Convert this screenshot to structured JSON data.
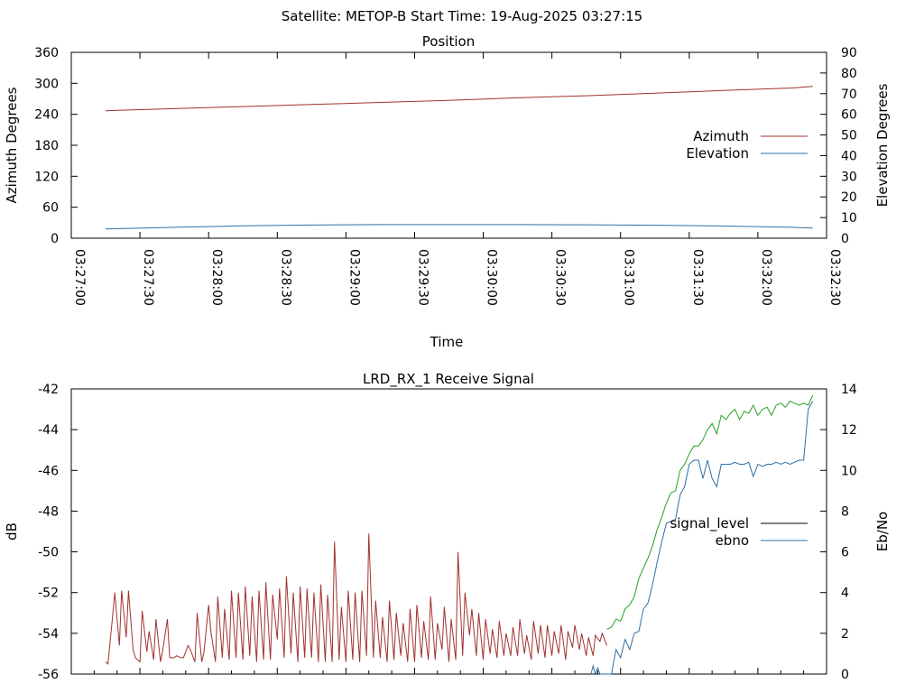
{
  "window_title": "Satellite: METOP-B    Start Time: 19-Aug-2025 03:27:15",
  "chart_data": [
    {
      "type": "line",
      "title": "Position",
      "xlabel": "Time",
      "ylabel": "Azimuth Degrees",
      "y2label": "Elevation Degrees",
      "x_ticks": [
        "03:27:00",
        "03:27:30",
        "03:28:00",
        "03:28:30",
        "03:29:00",
        "03:29:30",
        "03:30:00",
        "03:30:30",
        "03:31:00",
        "03:31:30",
        "03:32:00",
        "03:32:30"
      ],
      "y_ticks": [
        "360",
        "300",
        "240",
        "180",
        "120",
        "60",
        "0"
      ],
      "y2_ticks": [
        "90",
        "80",
        "70",
        "60",
        "50",
        "40",
        "30",
        "20",
        "10",
        "0"
      ],
      "ylim": [
        0,
        360
      ],
      "y2lim": [
        0,
        90
      ],
      "grid": false,
      "legend_position": "right",
      "series": [
        {
          "name": "Azimuth",
          "axis": "left",
          "color": "#a0322e",
          "x": [
            "03:27:15",
            "03:27:45",
            "03:28:15",
            "03:28:45",
            "03:29:15",
            "03:29:45",
            "03:30:15",
            "03:30:45",
            "03:31:15",
            "03:31:45",
            "03:32:15",
            "03:32:24"
          ],
          "values": [
            247,
            251,
            255,
            259,
            263,
            267,
            272,
            276,
            281,
            286,
            291,
            294
          ]
        },
        {
          "name": "Elevation",
          "axis": "right",
          "color": "#2d6fa5",
          "x": [
            "03:27:15",
            "03:27:45",
            "03:28:15",
            "03:28:45",
            "03:29:15",
            "03:29:45",
            "03:30:15",
            "03:30:45",
            "03:31:15",
            "03:31:45",
            "03:32:15",
            "03:32:24"
          ],
          "values": [
            4.5,
            5.3,
            6.0,
            6.4,
            6.6,
            6.6,
            6.6,
            6.5,
            6.3,
            5.9,
            5.3,
            4.9
          ]
        }
      ]
    },
    {
      "type": "line",
      "title": "LRD_RX_1 Receive Signal",
      "xlabel": "",
      "ylabel": "dB",
      "y2label": "Eb/No",
      "y_ticks": [
        "-42",
        "-44",
        "-46",
        "-48",
        "-50",
        "-52",
        "-54",
        "-56"
      ],
      "y2_ticks": [
        "14",
        "12",
        "10",
        "8",
        "6",
        "4",
        "2",
        "0"
      ],
      "ylim": [
        -56,
        -42
      ],
      "y2lim": [
        0,
        14
      ],
      "xlim": [
        "03:27:00",
        "03:32:30"
      ],
      "grid": false,
      "legend_position": "right",
      "series": [
        {
          "name": "signal_level",
          "axis": "left",
          "color": "#000000",
          "segments": [
            {
              "color": "#a0322e",
              "x_seconds": [
                15,
                16,
                18,
                19,
                21,
                22,
                24,
                25,
                27,
                28,
                30,
                31,
                33,
                34,
                36,
                37,
                39,
                40,
                42,
                43,
                45,
                46,
                48,
                49,
                51,
                52,
                54,
                55,
                57,
                58,
                60,
                61,
                63,
                64,
                66,
                67,
                69,
                70,
                72,
                73,
                75,
                76,
                78,
                79,
                81,
                82,
                84,
                85,
                87,
                88,
                90,
                91,
                93,
                94,
                96,
                97,
                99,
                100,
                102,
                103,
                105,
                106,
                108,
                109,
                111,
                112,
                114,
                115,
                117,
                118,
                120,
                121,
                123,
                124,
                126,
                127,
                129,
                130,
                132,
                133,
                135,
                136,
                138,
                139,
                141,
                142,
                144,
                145,
                147,
                148,
                150,
                151,
                153,
                154,
                156,
                157,
                159,
                160,
                162,
                163,
                165,
                166,
                168,
                169,
                171,
                172,
                174,
                175,
                177,
                178,
                180,
                181,
                183,
                184,
                186,
                187,
                189,
                190,
                192,
                193,
                195,
                196,
                198,
                199,
                201,
                202,
                204,
                205,
                207,
                208,
                210,
                211,
                213,
                214,
                216,
                217,
                219,
                220,
                222,
                223,
                225,
                226,
                228,
                229,
                231,
                232,
                234
              ],
              "values": [
                -55.4,
                -55.5,
                -53.2,
                -52.0,
                -54.6,
                -51.9,
                -54.2,
                -51.9,
                -54.8,
                -55.2,
                -55.4,
                -52.9,
                -54.9,
                -53.9,
                -55.3,
                -53.3,
                -55.4,
                -54.8,
                -53.3,
                -55.2,
                -55.2,
                -55.1,
                -55.2,
                -55.2,
                -54.6,
                -54.8,
                -55.4,
                -53.0,
                -55.4,
                -54.9,
                -52.6,
                -53.9,
                -55.4,
                -52.2,
                -55.2,
                -52.8,
                -55.3,
                -51.9,
                -55.2,
                -52.0,
                -55.3,
                -51.7,
                -55.1,
                -52.2,
                -55.4,
                -51.9,
                -55.3,
                -51.5,
                -55.3,
                -52.1,
                -54.3,
                -51.8,
                -55.2,
                -51.2,
                -55.0,
                -52.0,
                -55.4,
                -51.7,
                -55.2,
                -51.8,
                -55.2,
                -52.0,
                -55.4,
                -51.6,
                -55.4,
                -52.1,
                -55.4,
                -49.5,
                -55.3,
                -52.7,
                -55.4,
                -51.9,
                -55.3,
                -52.0,
                -55.4,
                -51.9,
                -55.1,
                -49.1,
                -55.2,
                -52.4,
                -55.2,
                -53.2,
                -55.4,
                -52.4,
                -55.3,
                -53.0,
                -55.1,
                -53.5,
                -55.4,
                -52.8,
                -55.4,
                -52.6,
                -55.2,
                -53.4,
                -55.3,
                -52.2,
                -55.3,
                -53.5,
                -54.8,
                -52.7,
                -55.4,
                -53.3,
                -55.3,
                -50.0,
                -55.1,
                -52.0,
                -54.1,
                -52.8,
                -55.1,
                -53.0,
                -55.3,
                -53.3,
                -55.0,
                -53.8,
                -55.2,
                -53.4,
                -55.1,
                -54.0,
                -55.1,
                -53.7,
                -55.1,
                -53.3,
                -55.0,
                -54.1,
                -55.3,
                -53.4,
                -55.0,
                -53.6,
                -55.2,
                -53.6,
                -55.1,
                -53.9,
                -55.0,
                -53.6,
                -55.3,
                -53.9,
                -54.7,
                -53.6,
                -54.8,
                -54.0,
                -55.1,
                -54.2,
                -55.1,
                -54.1,
                -54.4,
                -54.0,
                -54.6
              ]
            },
            {
              "color": "#22a022",
              "x_seconds": [
                234,
                236,
                238,
                240,
                242,
                244,
                246,
                248,
                250,
                252,
                254,
                256,
                258,
                260,
                262,
                264,
                266,
                268,
                270,
                272,
                274,
                276,
                278,
                280,
                282,
                284,
                286,
                288,
                290,
                292,
                294,
                296,
                298,
                300,
                302,
                304,
                306,
                308,
                310,
                312,
                314,
                316,
                318,
                320,
                322,
                324
              ],
              "values": [
                -53.8,
                -53.7,
                -53.3,
                -53.4,
                -52.8,
                -52.6,
                -52.2,
                -51.3,
                -50.8,
                -50.3,
                -49.7,
                -48.9,
                -48.3,
                -47.6,
                -47.1,
                -47.0,
                -46.0,
                -45.7,
                -45.2,
                -44.8,
                -44.8,
                -44.5,
                -44.0,
                -43.7,
                -44.2,
                -43.3,
                -43.5,
                -43.2,
                -43.0,
                -43.5,
                -43.1,
                -43.2,
                -42.8,
                -43.3,
                -43.0,
                -42.9,
                -43.3,
                -42.8,
                -42.7,
                -42.9,
                -42.6,
                -42.7,
                -42.8,
                -42.7,
                -42.8,
                -42.3
              ]
            }
          ]
        },
        {
          "name": "ebno",
          "axis": "right",
          "color": "#2d6fa5",
          "x_seconds": [
            227,
            228,
            229,
            230,
            231,
            232,
            234,
            236,
            238,
            240,
            242,
            244,
            246,
            248,
            250,
            252,
            254,
            256,
            258,
            260,
            262,
            264,
            266,
            268,
            270,
            272,
            274,
            276,
            278,
            280,
            282,
            284,
            286,
            288,
            290,
            292,
            294,
            296,
            298,
            300,
            302,
            304,
            306,
            308,
            310,
            312,
            314,
            316,
            318,
            320,
            322,
            324
          ],
          "values": [
            0,
            0.4,
            0,
            0.3,
            0,
            0,
            0,
            0,
            1.2,
            0.8,
            1.7,
            1.2,
            2.0,
            2.1,
            3.2,
            3.5,
            4.4,
            5.5,
            6.5,
            7.4,
            7.5,
            7.6,
            8.8,
            9.2,
            10.3,
            10.5,
            10.5,
            9.6,
            10.5,
            9.6,
            9.2,
            10.3,
            10.3,
            10.3,
            10.4,
            10.3,
            10.3,
            10.4,
            9.7,
            10.3,
            10.2,
            10.3,
            10.3,
            10.4,
            10.3,
            10.4,
            10.3,
            10.4,
            10.5,
            10.5,
            13.0,
            13.4
          ]
        }
      ]
    }
  ]
}
